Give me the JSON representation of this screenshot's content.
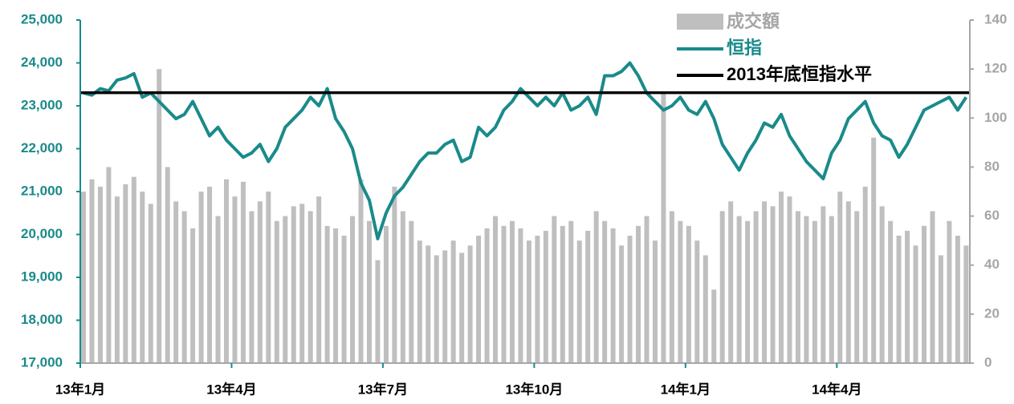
{
  "chart_data": {
    "type": "bar_line",
    "legend": "upper right",
    "categories": [
      "13年1月",
      null,
      null,
      null,
      null,
      null,
      null,
      null,
      null,
      null,
      null,
      null,
      null,
      null,
      null,
      null,
      null,
      null,
      "13年4月",
      null,
      null,
      null,
      null,
      null,
      null,
      null,
      null,
      null,
      null,
      null,
      null,
      null,
      null,
      null,
      null,
      null,
      "13年7月",
      null,
      null,
      null,
      null,
      null,
      null,
      null,
      null,
      null,
      null,
      null,
      null,
      null,
      null,
      null,
      null,
      null,
      "13年10月",
      null,
      null,
      null,
      null,
      null,
      null,
      null,
      null,
      null,
      null,
      null,
      null,
      null,
      null,
      null,
      null,
      null,
      "14年1月",
      null,
      null,
      null,
      null,
      null,
      null,
      null,
      null,
      null,
      null,
      null,
      null,
      null,
      null,
      null,
      null,
      null,
      "14年4月",
      null,
      null,
      null,
      null,
      null,
      null,
      null,
      null,
      null,
      null,
      null,
      null,
      null,
      null,
      null
    ],
    "series": [
      {
        "name": "成交額",
        "type": "bar",
        "axis": "y2",
        "color": "#bfbfbf",
        "values": [
          70,
          75,
          72,
          80,
          68,
          73,
          76,
          70,
          65,
          120,
          80,
          66,
          62,
          55,
          70,
          72,
          60,
          75,
          68,
          74,
          62,
          66,
          70,
          58,
          60,
          64,
          65,
          62,
          68,
          56,
          55,
          52,
          60,
          75,
          58,
          42,
          56,
          72,
          62,
          58,
          50,
          48,
          44,
          46,
          50,
          45,
          48,
          52,
          55,
          60,
          56,
          58,
          55,
          50,
          52,
          54,
          60,
          56,
          58,
          50,
          54,
          62,
          58,
          55,
          48,
          52,
          56,
          60,
          50,
          110,
          62,
          58,
          56,
          50,
          44,
          30,
          62,
          66,
          60,
          58,
          62,
          66,
          64,
          70,
          68,
          62,
          60,
          58,
          64,
          60,
          70,
          66,
          62,
          72,
          92,
          64,
          58,
          52,
          54,
          48,
          56,
          62,
          44,
          58,
          52,
          48
        ]
      },
      {
        "name": "恒指",
        "type": "line",
        "color": "#1a8a8a",
        "values": [
          23300,
          23250,
          23400,
          23350,
          23600,
          23650,
          23750,
          23200,
          23300,
          23100,
          22900,
          22700,
          22800,
          23100,
          22700,
          22300,
          22500,
          22200,
          22000,
          21800,
          21900,
          22100,
          21700,
          22000,
          22500,
          22700,
          22900,
          23200,
          23000,
          23400,
          22700,
          22400,
          22000,
          21200,
          20800,
          19900,
          20500,
          20900,
          21100,
          21400,
          21700,
          21900,
          21900,
          22100,
          22200,
          21700,
          21800,
          22500,
          22300,
          22500,
          22900,
          23100,
          23400,
          23200,
          23000,
          23200,
          23000,
          23300,
          22900,
          23000,
          23200,
          22800,
          23700,
          23700,
          23800,
          24000,
          23700,
          23300,
          23100,
          22900,
          23000,
          23200,
          22900,
          22800,
          23100,
          22700,
          22100,
          21800,
          21500,
          21900,
          22200,
          22600,
          22500,
          22800,
          22300,
          22000,
          21700,
          21500,
          21300,
          21900,
          22200,
          22700,
          22900,
          23100,
          22600,
          22300,
          22200,
          21800,
          22100,
          22500,
          22900,
          23000,
          23100,
          23200,
          22900,
          23200
        ]
      }
    ],
    "reference_line": {
      "name": "2013年底恒指水平",
      "value": 23306,
      "color": "#000000"
    },
    "ylim": [
      17000,
      25000
    ],
    "yticks": [
      {
        "value": 17000,
        "label": "17,000"
      },
      {
        "value": 18000,
        "label": "18,000"
      },
      {
        "value": 19000,
        "label": "19,000"
      },
      {
        "value": 20000,
        "label": "20,000"
      },
      {
        "value": 21000,
        "label": "21,000"
      },
      {
        "value": 22000,
        "label": "22,000"
      },
      {
        "value": 23000,
        "label": "23,000"
      },
      {
        "value": 24000,
        "label": "24,000"
      },
      {
        "value": 25000,
        "label": "25,000"
      }
    ],
    "y2lim": [
      0,
      140
    ],
    "y2ticks": [
      0,
      20,
      40,
      60,
      80,
      100,
      120,
      140
    ]
  }
}
